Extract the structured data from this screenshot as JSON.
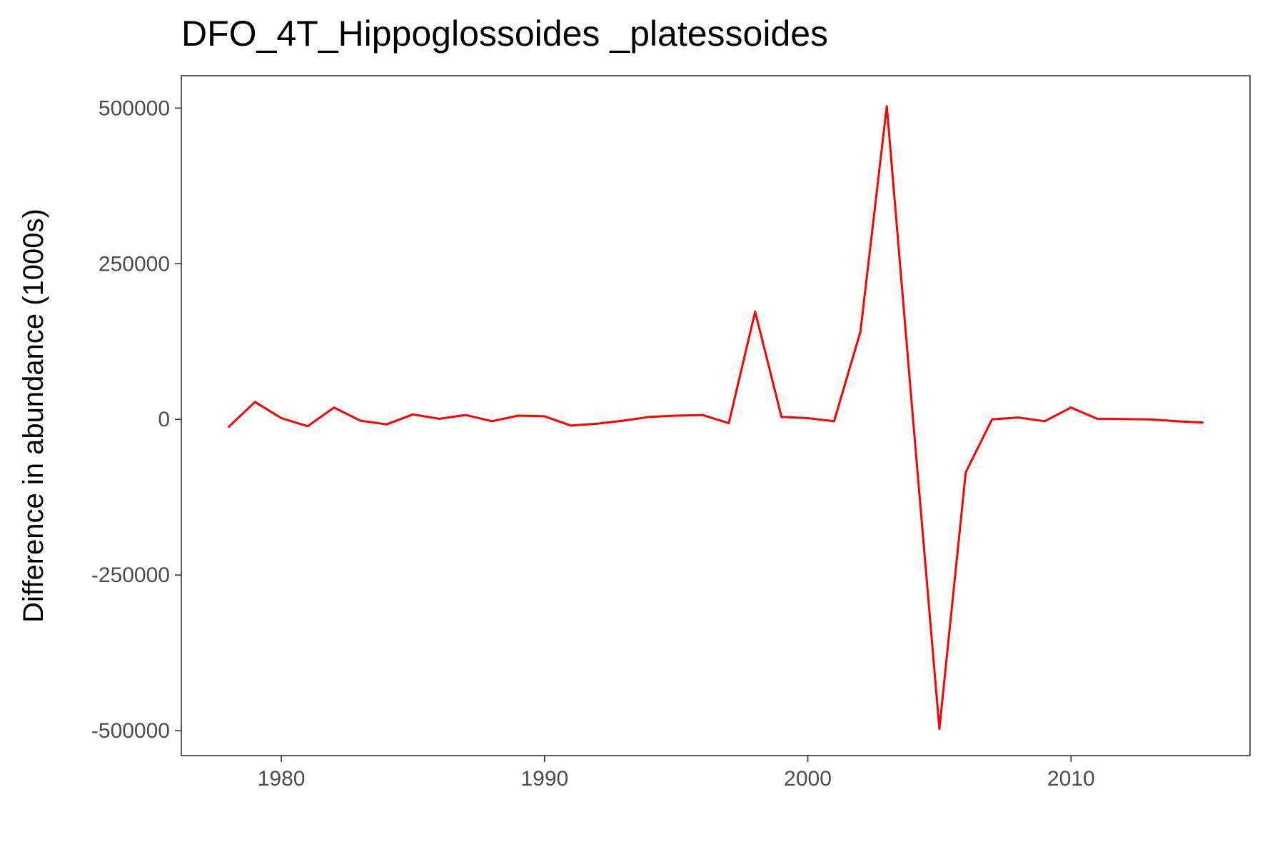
{
  "chart_data": {
    "type": "line",
    "title": "DFO_4T_Hippoglossoides _platessoides",
    "xlabel": "",
    "ylabel": "Difference in abundance (1000s)",
    "xlim": [
      1976.2,
      2016.8
    ],
    "ylim": [
      -540000,
      552000
    ],
    "x_ticks": [
      1980,
      1990,
      2000,
      2010
    ],
    "y_ticks": [
      -500000,
      -250000,
      0,
      250000,
      500000
    ],
    "x_tick_labels": [
      "1980",
      "1990",
      "2000",
      "2010"
    ],
    "y_tick_labels": [
      "-500000",
      "-250000",
      "0",
      "250000",
      "500000"
    ],
    "grid": false,
    "series": [
      {
        "color": "#ff0000",
        "x": [
          1978,
          1979,
          1980,
          1981,
          1982,
          1983,
          1984,
          1985,
          1986,
          1987,
          1988,
          1989,
          1990,
          1991,
          1992,
          1993,
          1994,
          1995,
          1996,
          1997,
          1998,
          1999,
          2000,
          2001,
          2002,
          2003,
          2004,
          2005,
          2006,
          2007,
          2008,
          2009,
          2010,
          2011,
          2012,
          2013,
          2014,
          2015
        ],
        "y": [
          -12000,
          28000,
          2000,
          -11000,
          19000,
          -2000,
          -8000,
          8000,
          1000,
          7000,
          -3000,
          6000,
          5000,
          -10000,
          -7000,
          -2000,
          4000,
          6000,
          7000,
          -6000,
          173000,
          4000,
          2000,
          -3000,
          141000,
          503000,
          0,
          -497000,
          -85000,
          0,
          3000,
          -3000,
          19000,
          1000,
          500,
          0,
          -3000,
          -5000
        ]
      }
    ]
  }
}
